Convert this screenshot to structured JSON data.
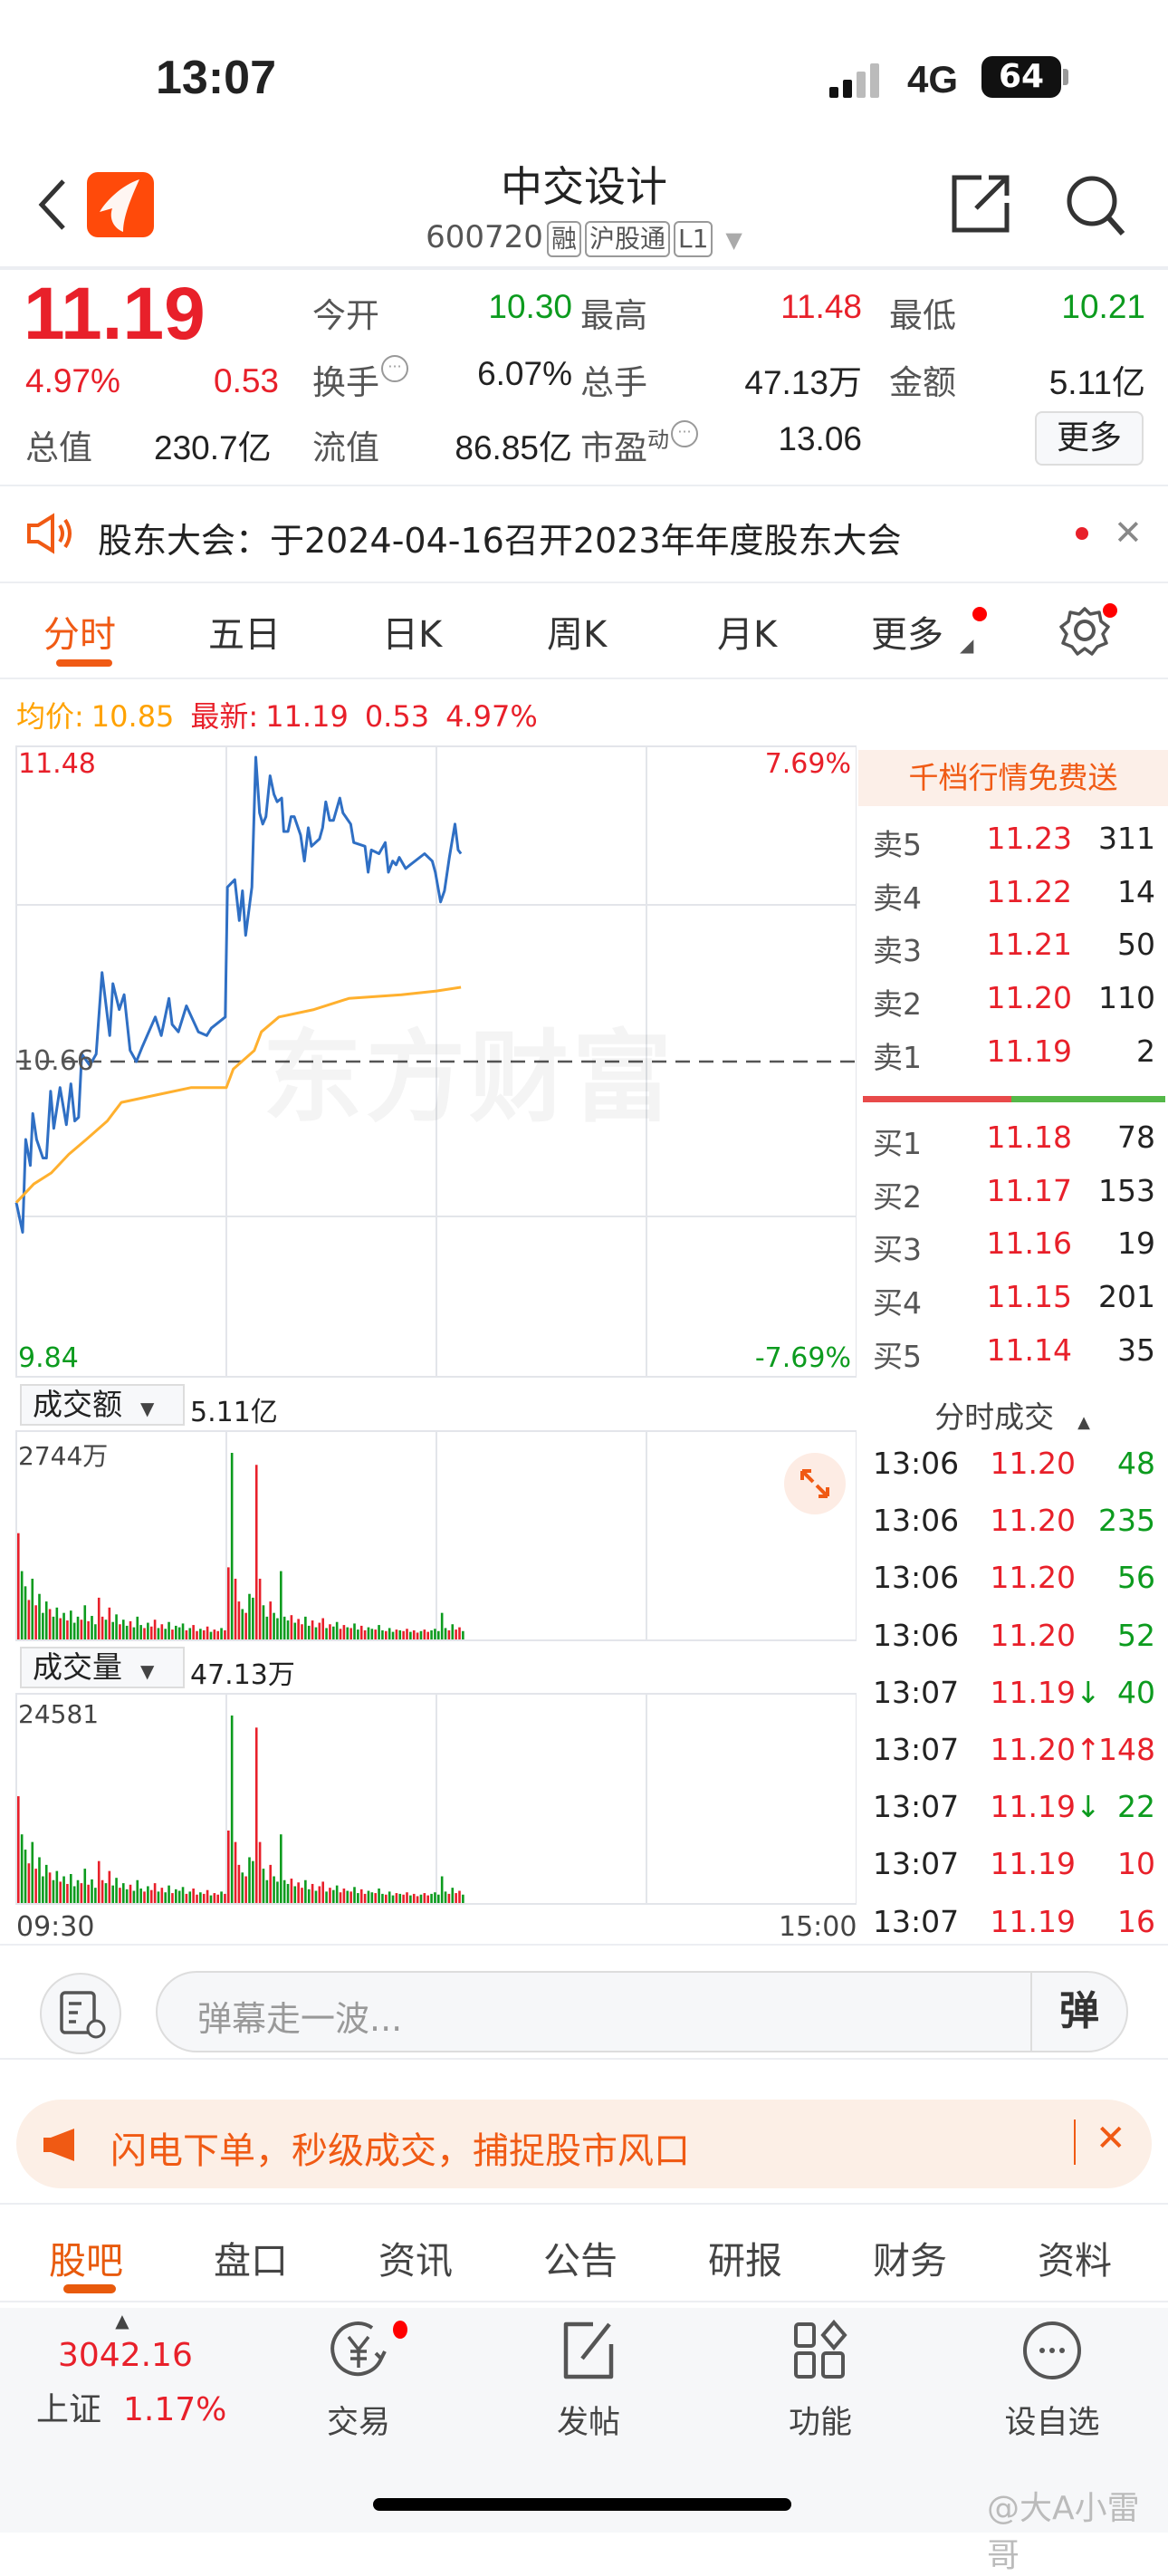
{
  "status_bar": {
    "time": "13:07",
    "network": "4G",
    "battery": "64"
  },
  "header": {
    "title": "中交设计",
    "code": "600720",
    "tags": [
      "融",
      "沪股通",
      "L1"
    ]
  },
  "quote": {
    "price": "11.19",
    "change_pct": "4.97%",
    "change": "0.53",
    "fields": [
      {
        "label": "今开",
        "value": "10.30",
        "color": "green"
      },
      {
        "label": "最高",
        "value": "11.48",
        "color": "red"
      },
      {
        "label": "最低",
        "value": "10.21",
        "color": "green"
      },
      {
        "label": "换手",
        "value": "6.07%",
        "color": "dark"
      },
      {
        "label": "总手",
        "value": "47.13万",
        "color": "dark"
      },
      {
        "label": "金额",
        "value": "5.11亿",
        "color": "dark"
      },
      {
        "label": "总值",
        "value": "230.7亿",
        "color": "dark"
      },
      {
        "label": "流值",
        "value": "86.85亿",
        "color": "dark"
      },
      {
        "label": "市盈",
        "value": "13.06",
        "color": "dark",
        "sup": "动"
      }
    ],
    "more_button": "更多"
  },
  "notice": {
    "text": "股东大会：于2024-04-16召开2023年年度股东大会"
  },
  "chart_tabs": [
    "分时",
    "五日",
    "日K",
    "周K",
    "月K",
    "更多"
  ],
  "active_chart_tab": 0,
  "summary": {
    "avg_label": "均价:",
    "avg_value": "10.85",
    "latest_label": "最新:",
    "latest_value": "11.19",
    "change": "0.53",
    "change_pct": "4.97%"
  },
  "chart_data": {
    "type": "line",
    "y_max_label": "11.48",
    "y_min_label": "9.84",
    "prev_close_label": "10.66",
    "pct_max_label": "7.69%",
    "pct_min_label": "-7.69%",
    "ylim": [
      9.84,
      11.48
    ],
    "prev_close": 10.66,
    "x_start": "09:30",
    "x_end": "15:00",
    "series": [
      {
        "color": "#2f6fc4",
        "points": [
          [
            0,
            10.28
          ],
          [
            1.8,
            10.2
          ],
          [
            2.7,
            10.45
          ],
          [
            4,
            10.38
          ],
          [
            4.7,
            10.52
          ],
          [
            5.8,
            10.45
          ],
          [
            7.6,
            10.4
          ],
          [
            8.6,
            10.4
          ],
          [
            9.8,
            10.58
          ],
          [
            10.7,
            10.48
          ],
          [
            12.5,
            10.59
          ],
          [
            14.3,
            10.49
          ],
          [
            15.6,
            10.6
          ],
          [
            16.7,
            10.5
          ],
          [
            17.8,
            10.51
          ],
          [
            18.7,
            10.68
          ],
          [
            21,
            10.65
          ],
          [
            22.8,
            10.68
          ],
          [
            24.5,
            10.9
          ],
          [
            26.7,
            10.73
          ],
          [
            27.6,
            10.87
          ],
          [
            29.4,
            10.8
          ],
          [
            30.8,
            10.84
          ],
          [
            32.5,
            10.69
          ],
          [
            34.3,
            10.66
          ],
          [
            36,
            10.7
          ],
          [
            39.7,
            10.78
          ],
          [
            41.4,
            10.73
          ],
          [
            43.6,
            10.83
          ],
          [
            44.5,
            10.76
          ],
          [
            46.3,
            10.74
          ],
          [
            48.6,
            10.81
          ],
          [
            52,
            10.74
          ],
          [
            54.4,
            10.73
          ],
          [
            55.7,
            10.75
          ],
          [
            59.7,
            10.78
          ],
          [
            60.3,
            11.13
          ],
          [
            62.4,
            11.15
          ],
          [
            63.7,
            11.04
          ],
          [
            64.6,
            11.12
          ],
          [
            65.5,
            11.0
          ],
          [
            67.3,
            11.13
          ],
          [
            68.4,
            11.48
          ],
          [
            69.5,
            11.33
          ],
          [
            70.4,
            11.3
          ],
          [
            71.3,
            11.32
          ],
          [
            72.5,
            11.43
          ],
          [
            73.6,
            11.38
          ],
          [
            74.5,
            11.36
          ],
          [
            75.8,
            11.37
          ],
          [
            76.4,
            11.28
          ],
          [
            77.6,
            11.28
          ],
          [
            78.5,
            11.32
          ],
          [
            79.4,
            11.32
          ],
          [
            81.2,
            11.27
          ],
          [
            82.3,
            11.2
          ],
          [
            83.4,
            11.29
          ],
          [
            84.3,
            11.24
          ],
          [
            86.6,
            11.26
          ],
          [
            87.5,
            11.29
          ],
          [
            88.4,
            11.36
          ],
          [
            89.5,
            11.31
          ],
          [
            90.6,
            11.31
          ],
          [
            92.4,
            11.37
          ],
          [
            93.3,
            11.33
          ],
          [
            95.5,
            11.3
          ],
          [
            96.4,
            11.25
          ],
          [
            99.6,
            11.24
          ],
          [
            100.5,
            11.17
          ],
          [
            101.4,
            11.23
          ],
          [
            103.6,
            11.22
          ],
          [
            105.4,
            11.25
          ],
          [
            106.3,
            11.17
          ],
          [
            107.5,
            11.2
          ],
          [
            108.5,
            11.19
          ],
          [
            109.4,
            11.21
          ],
          [
            111.2,
            11.18
          ],
          [
            112.5,
            11.19
          ],
          [
            116.6,
            11.22
          ],
          [
            118.8,
            11.2
          ],
          [
            119.7,
            11.17
          ],
          [
            121.2,
            11.09
          ],
          [
            122.3,
            11.12
          ],
          [
            123.7,
            11.21
          ],
          [
            125.3,
            11.3
          ],
          [
            126.2,
            11.23
          ],
          [
            127,
            11.22
          ]
        ]
      },
      {
        "color": "#ffb02e",
        "points": [
          [
            0,
            10.28
          ],
          [
            5,
            10.33
          ],
          [
            10,
            10.36
          ],
          [
            15,
            10.41
          ],
          [
            20,
            10.45
          ],
          [
            26,
            10.5
          ],
          [
            30,
            10.55
          ],
          [
            40,
            10.57
          ],
          [
            50,
            10.59
          ],
          [
            60,
            10.59
          ],
          [
            62,
            10.64
          ],
          [
            68,
            10.69
          ],
          [
            70,
            10.74
          ],
          [
            75,
            10.78
          ],
          [
            85,
            10.8
          ],
          [
            95,
            10.83
          ],
          [
            110,
            10.84
          ],
          [
            120,
            10.85
          ],
          [
            127,
            10.86
          ]
        ]
      }
    ],
    "amount_panel": {
      "label": "成交额",
      "total": "5.11亿",
      "max_label": "2744万"
    },
    "volume_panel": {
      "label": "成交量",
      "total": "47.13万",
      "max_label": "24581"
    },
    "volumes": [
      14000,
      9000,
      7000,
      5200,
      8000,
      4500,
      6000,
      3500,
      5000,
      4000,
      3000,
      4200,
      2800,
      3500,
      2500,
      3800,
      2200,
      3000,
      2600,
      4500,
      2400,
      3100,
      2000,
      5500,
      3000,
      2600,
      4200,
      2300,
      3300,
      2000,
      2600,
      1800,
      2400,
      1600,
      3000,
      1900,
      1500,
      2200,
      1700,
      2600,
      1500,
      2000,
      1400,
      2300,
      1300,
      1800,
      1600,
      2100,
      1200,
      1500,
      1900,
      1100,
      1400,
      1200,
      1700,
      1000,
      1300,
      1100,
      1500,
      1200,
      9500,
      24581,
      8000,
      5000,
      4000,
      3500,
      6000,
      5500,
      23000,
      8000,
      4500,
      3000,
      5000,
      3500,
      2800,
      9000,
      3000,
      2500,
      3200,
      2200,
      2700,
      2000,
      3000,
      1800,
      2500,
      1600,
      2200,
      2800,
      1500,
      2000,
      1700,
      2300,
      1400,
      1900,
      1600,
      1500,
      2100,
      1300,
      1800,
      1200,
      1600,
      1400,
      1300,
      1900,
      1200,
      1100,
      1500,
      1000,
      1300,
      1200,
      1100,
      1400,
      1000,
      1200,
      900,
      1100,
      1300,
      1000,
      1200,
      1400,
      1100,
      3500,
      1500,
      1200,
      2000,
      1300,
      1600,
      1100
    ],
    "watermark": "东方财富",
    "colors": {
      "up": "#e8202a",
      "down": "#0c9b1e"
    }
  },
  "order_book": {
    "promo": "千档行情免费送",
    "asks": [
      {
        "label": "卖5",
        "price": "11.23",
        "vol": "311"
      },
      {
        "label": "卖4",
        "price": "11.22",
        "vol": "14"
      },
      {
        "label": "卖3",
        "price": "11.21",
        "vol": "50"
      },
      {
        "label": "卖2",
        "price": "11.20",
        "vol": "110"
      },
      {
        "label": "卖1",
        "price": "11.19",
        "vol": "2"
      }
    ],
    "bids": [
      {
        "label": "买1",
        "price": "11.18",
        "vol": "78"
      },
      {
        "label": "买2",
        "price": "11.17",
        "vol": "153"
      },
      {
        "label": "买3",
        "price": "11.16",
        "vol": "19"
      },
      {
        "label": "买4",
        "price": "11.15",
        "vol": "201"
      },
      {
        "label": "买5",
        "price": "11.14",
        "vol": "35"
      }
    ],
    "buy_ratio": 0.49
  },
  "ticks": {
    "title": "分时成交",
    "rows": [
      {
        "time": "13:06",
        "price": "11.20",
        "arrow": "",
        "vol": "48",
        "side": "down"
      },
      {
        "time": "13:06",
        "price": "11.20",
        "arrow": "",
        "vol": "235",
        "side": "down"
      },
      {
        "time": "13:06",
        "price": "11.20",
        "arrow": "",
        "vol": "56",
        "side": "down"
      },
      {
        "time": "13:06",
        "price": "11.20",
        "arrow": "",
        "vol": "52",
        "side": "down"
      },
      {
        "time": "13:07",
        "price": "11.19",
        "arrow": "↓",
        "vol": "40",
        "side": "down"
      },
      {
        "time": "13:07",
        "price": "11.20",
        "arrow": "↑",
        "vol": "148",
        "side": "up"
      },
      {
        "time": "13:07",
        "price": "11.19",
        "arrow": "↓",
        "vol": "22",
        "side": "down"
      },
      {
        "time": "13:07",
        "price": "11.19",
        "arrow": "",
        "vol": "10",
        "side": "up"
      },
      {
        "time": "13:07",
        "price": "11.19",
        "arrow": "",
        "vol": "16",
        "side": "up"
      }
    ]
  },
  "danmaku": {
    "placeholder": "弹幕走一波...",
    "send": "弹"
  },
  "ad": {
    "text": "闪电下单，秒级成交，捕捉股市风口"
  },
  "bottom_tabs": [
    "股吧",
    "盘口",
    "资讯",
    "公告",
    "研报",
    "财务",
    "资料"
  ],
  "bottom_nav": {
    "index_value": "3042.16",
    "index_name": "上证",
    "index_pct": "1.17%",
    "items": [
      "交易",
      "发帖",
      "功能",
      "设自选"
    ]
  },
  "watermark_credit": "@大A小雷哥"
}
